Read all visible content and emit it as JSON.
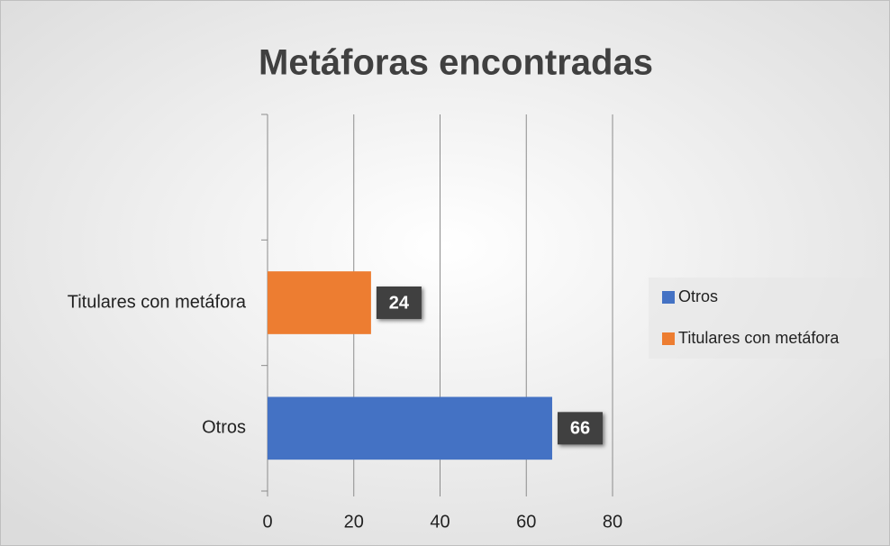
{
  "chart_data": {
    "type": "hbar",
    "title": "Metáforas encontradas",
    "categories": [
      "Otros",
      "Titulares con metáfora",
      null
    ],
    "series": [
      {
        "name": "Otros",
        "color": "#4472c4",
        "values": [
          66,
          null,
          null
        ]
      },
      {
        "name": "Titulares con metáfora",
        "color": "#ed7d31",
        "values": [
          null,
          24,
          null
        ]
      }
    ],
    "xlim": [
      0,
      80
    ],
    "xticks": [
      0,
      20,
      40,
      60,
      80
    ],
    "grid": true,
    "legend": "right"
  }
}
